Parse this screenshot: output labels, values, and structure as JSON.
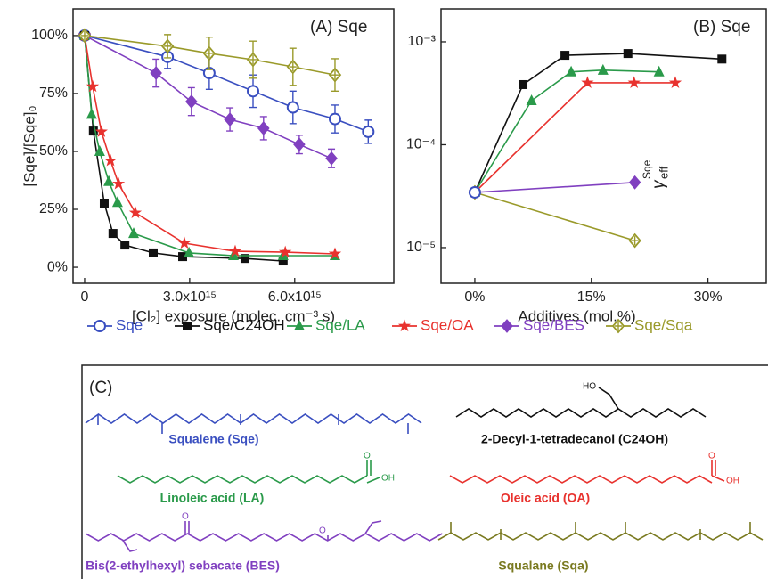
{
  "chart_data": [
    {
      "type": "line",
      "annotation": "(A) Sqe",
      "xlabel": "[Cl₂] exposure (molec. cm⁻³ s)",
      "ylabel": "[Sqe]/[Sqe]₀",
      "xlim": [
        -330000000000000.0,
        8830000000000000.0
      ],
      "ylim": [
        -6.9,
        111.5
      ],
      "xticks": [
        0,
        {
          "value": 3000000000000000.0,
          "label": "3.0x10¹⁵"
        },
        {
          "value": 6000000000000000.0,
          "label": "6.0x10¹⁵"
        }
      ],
      "yticks": [
        {
          "value": 0,
          "label": "0%"
        },
        {
          "value": 25,
          "label": "25%"
        },
        {
          "value": 50,
          "label": "50%"
        },
        {
          "value": 75,
          "label": "75%"
        },
        {
          "value": 100,
          "label": "100%"
        }
      ],
      "series": [
        {
          "name": "Sqe",
          "color": "#3a4fc0",
          "marker": "circle-open",
          "x": [
            0,
            2370000000000000.0,
            3560000000000000.0,
            4810000000000000.0,
            5950000000000000.0,
            7150000000000000.0,
            8100000000000000.0
          ],
          "values": [
            100,
            90.8,
            83.8,
            76,
            69,
            64,
            58.5
          ],
          "errors": [
            1,
            5,
            7,
            7,
            7,
            6,
            5
          ]
        },
        {
          "name": "Sqe/C24OH",
          "color": "#111111",
          "marker": "square",
          "x": [
            0,
            250000000000000.0,
            560000000000000.0,
            810000000000000.0,
            1150000000000000.0,
            1960000000000000.0,
            2800000000000000.0,
            4580000000000000.0,
            5670000000000000.0
          ],
          "values": [
            100,
            58.8,
            27.7,
            14.6,
            9.6,
            6.2,
            4.6,
            3.8,
            2.7
          ]
        },
        {
          "name": "Sqe/LA",
          "color": "#2a9a4a",
          "marker": "triangle",
          "x": [
            0,
            200000000000000.0,
            430000000000000.0,
            690000000000000.0,
            940000000000000.0,
            1400000000000000.0,
            2980000000000000.0,
            4250000000000000.0,
            5670000000000000.0,
            7150000000000000.0
          ],
          "values": [
            100,
            66,
            50,
            37,
            28,
            14.6,
            6.2,
            5,
            5,
            5
          ]
        },
        {
          "name": "Sqe/OA",
          "color": "#e8322e",
          "marker": "star",
          "x": [
            0,
            230000000000000.0,
            480000000000000.0,
            740000000000000.0,
            970000000000000.0,
            1450000000000000.0,
            2850000000000000.0,
            4300000000000000.0,
            5730000000000000.0,
            7150000000000000.0
          ],
          "values": [
            100,
            78,
            58.5,
            46,
            36,
            23.5,
            10.4,
            6.9,
            6.5,
            5.8
          ]
        },
        {
          "name": "Sqe/BES",
          "color": "#8040c0",
          "marker": "diamond",
          "x": [
            0,
            2040000000000000.0,
            3050000000000000.0,
            4150000000000000.0,
            5110000000000000.0,
            6130000000000000.0,
            7050000000000000.0
          ],
          "values": [
            100,
            83.8,
            71.5,
            63.8,
            60,
            53,
            47
          ],
          "errors": [
            1,
            6,
            6,
            5,
            5,
            4,
            4
          ]
        },
        {
          "name": "Sqe/Sqa",
          "color": "#9a9a2a",
          "marker": "diamond-cross",
          "x": [
            0,
            2370000000000000.0,
            3560000000000000.0,
            4810000000000000.0,
            5950000000000000.0,
            7150000000000000.0
          ],
          "values": [
            100,
            95.4,
            92.3,
            89.6,
            86.5,
            83
          ],
          "errors": [
            1,
            5,
            7,
            8,
            8,
            7
          ]
        }
      ]
    },
    {
      "type": "line",
      "annotation": "(B) Sqe",
      "log_y": true,
      "xlabel": "Additives (mol.%)",
      "ylabel": "γ",
      "ylabel_sub": "eff",
      "ylabel_sup": "Sqe",
      "xlim": [
        -4.35,
        37.5
      ],
      "ylim": [
        4.5e-06,
        0.00209
      ],
      "xticks": [
        {
          "value": 0,
          "label": "0%"
        },
        {
          "value": 15,
          "label": "15%"
        },
        {
          "value": 30,
          "label": "30%"
        }
      ],
      "yticks": [
        {
          "value": 1e-05,
          "label": "10⁻⁵"
        },
        {
          "value": 0.0001,
          "label": "10⁻⁴"
        },
        {
          "value": 0.001,
          "label": "10⁻³"
        }
      ],
      "series": [
        {
          "color": "#111111",
          "marker": "square",
          "x": [
            0,
            6.2,
            11.6,
            19.7,
            31.8
          ],
          "values": [
            3.44e-05,
            0.000384,
            0.00074,
            0.00077,
            0.00068
          ]
        },
        {
          "color": "#2a9a4a",
          "marker": "triangle",
          "x": [
            0,
            7.3,
            12.4,
            16.5,
            23.7
          ],
          "values": [
            3.44e-05,
            0.000268,
            0.00051,
            0.00053,
            0.00051
          ]
        },
        {
          "color": "#e8322e",
          "marker": "star",
          "x": [
            0,
            14.5,
            20.5,
            25.8
          ],
          "values": [
            3.44e-05,
            0.0004,
            0.0004,
            0.0004
          ]
        },
        {
          "color": "#8040c0",
          "marker": "diamond",
          "x": [
            0,
            20.6
          ],
          "values": [
            3.44e-05,
            4.3e-05
          ]
        },
        {
          "color": "#9a9a2a",
          "marker": "diamond-cross",
          "x": [
            0,
            20.6
          ],
          "values": [
            3.44e-05,
            1.17e-05
          ]
        },
        {
          "color": "#3a4fc0",
          "marker": "circle-open",
          "x": [
            0
          ],
          "values": [
            3.44e-05
          ]
        }
      ]
    }
  ],
  "structures_panel": {
    "label": "(C)",
    "molecules": [
      {
        "name": "Squalene (Sqe)",
        "color": "#3a4fc0"
      },
      {
        "name": "2-Decyl-1-tetradecanol (C24OH)",
        "color": "#111111",
        "atoms": [
          "HO"
        ]
      },
      {
        "name": "Linoleic acid (LA)",
        "color": "#2a9a4a",
        "atoms": [
          "O",
          "OH"
        ]
      },
      {
        "name": "Oleic acid (OA)",
        "color": "#e8322e",
        "atoms": [
          "O",
          "OH"
        ]
      },
      {
        "name": "Bis(2-ethylhexyl) sebacate (BES)",
        "color": "#8040c0",
        "atoms": [
          "O",
          "O"
        ]
      },
      {
        "name": "Squalane (Sqa)",
        "color": "#7a7a20"
      }
    ]
  }
}
